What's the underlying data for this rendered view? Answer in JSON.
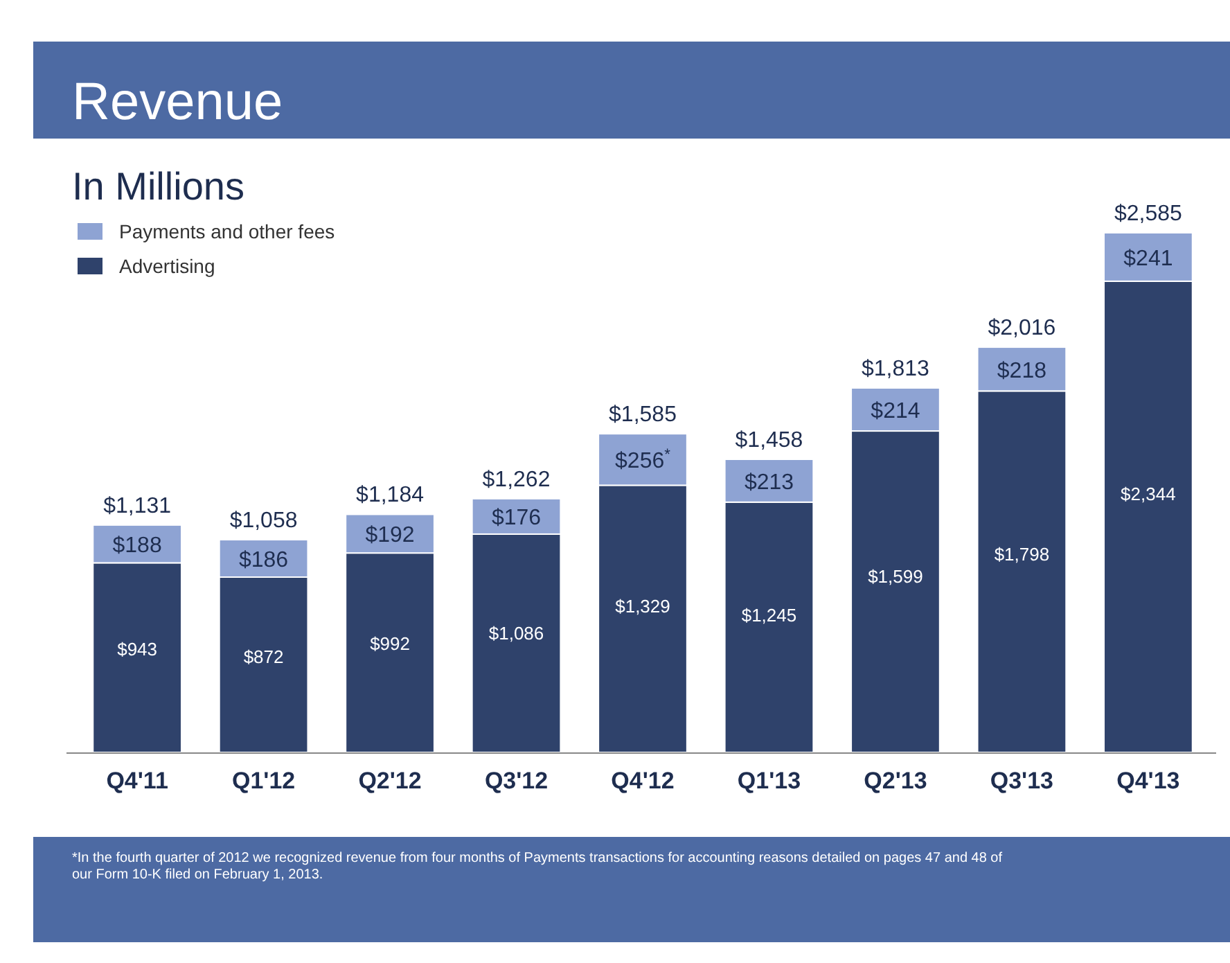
{
  "chart_data": {
    "type": "bar",
    "title": "Revenue",
    "subtitle": "In Millions",
    "stacked": true,
    "legend": "top left",
    "categories": [
      "Q4'11",
      "Q1'12",
      "Q2'12",
      "Q3'12",
      "Q4'12",
      "Q1'13",
      "Q2'13",
      "Q3'13",
      "Q4'13"
    ],
    "series": [
      {
        "name": "Advertising",
        "color": "#2f426b",
        "values": [
          943,
          872,
          992,
          1086,
          1329,
          1245,
          1599,
          1798,
          2344
        ],
        "value_labels": [
          "$943",
          "$872",
          "$992",
          "$1,086",
          "$1,329",
          "$1,245",
          "$1,599",
          "$1,798",
          "$2,344"
        ]
      },
      {
        "name": "Payments and other fees",
        "color": "#8ea3d3",
        "values": [
          188,
          186,
          192,
          176,
          256,
          213,
          214,
          218,
          241
        ],
        "value_labels": [
          "$188",
          "$186",
          "$192",
          "$176",
          "$256$^{*}$",
          "$213",
          "$214",
          "$218",
          "$241"
        ]
      }
    ],
    "totals": [
      "$1,131",
      "$1,058",
      "$1,184",
      "$1,262",
      "$1,585",
      "$1,458",
      "$1,813",
      "$2,016",
      "$2,585"
    ],
    "annotations": [
      "*In the fourth quarter of 2012 we recognized revenue from four months of Payments transactions for accounting reasons detailed on pages 47 and 48 of our Form 10-K filed on February 1, 2013."
    ]
  }
}
